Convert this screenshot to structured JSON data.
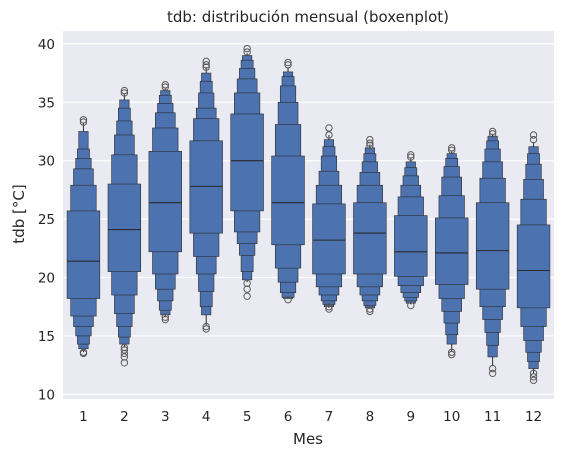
{
  "chart_data": {
    "type": "boxen",
    "title": "tdb: distribución mensual (boxenplot)",
    "xlabel": "Mes",
    "ylabel": "tdb [°C]",
    "categories": [
      "1",
      "2",
      "3",
      "4",
      "5",
      "6",
      "7",
      "8",
      "9",
      "10",
      "11",
      "12"
    ],
    "ylim": [
      9.6,
      41.1
    ],
    "yticks": [
      10,
      15,
      20,
      25,
      30,
      35,
      40
    ],
    "grid": true,
    "colors": {
      "plot_bg": "#eaeaf2",
      "grid": "#ffffff",
      "box": "#4c72b0",
      "edge": "#2b2b2b"
    },
    "series": [
      {
        "month": "1",
        "median": 21.4,
        "levels": [
          [
            18.2,
            25.7
          ],
          [
            16.7,
            27.9
          ],
          [
            15.8,
            29.3
          ],
          [
            15.0,
            30.2
          ],
          [
            14.3,
            31.0
          ],
          [
            13.9,
            32.5
          ]
        ],
        "whisker": [
          13.6,
          33.2
        ],
        "outliers": [
          13.5,
          13.6,
          33.3,
          33.5
        ]
      },
      {
        "month": "2",
        "median": 24.1,
        "levels": [
          [
            20.5,
            28.0
          ],
          [
            18.5,
            30.5
          ],
          [
            16.9,
            32.2
          ],
          [
            15.8,
            33.4
          ],
          [
            14.9,
            34.5
          ],
          [
            14.3,
            35.2
          ]
        ],
        "whisker": [
          14.0,
          35.7
        ],
        "outliers": [
          12.7,
          13.2,
          13.5,
          13.8,
          14.0,
          35.8,
          36.0
        ]
      },
      {
        "month": "3",
        "median": 26.4,
        "levels": [
          [
            22.2,
            30.8
          ],
          [
            20.3,
            32.8
          ],
          [
            19.0,
            34.1
          ],
          [
            18.0,
            34.9
          ],
          [
            17.2,
            35.6
          ],
          [
            16.8,
            36.0
          ]
        ],
        "whisker": [
          16.6,
          36.2
        ],
        "outliers": [
          16.4,
          16.6,
          36.3,
          36.5
        ]
      },
      {
        "month": "4",
        "median": 27.8,
        "levels": [
          [
            23.8,
            31.7
          ],
          [
            21.8,
            33.6
          ],
          [
            20.3,
            34.5
          ],
          [
            18.8,
            35.8
          ],
          [
            17.5,
            36.8
          ],
          [
            16.8,
            37.5
          ]
        ],
        "whisker": [
          15.9,
          38.0
        ],
        "outliers": [
          15.6,
          15.8,
          38.0,
          38.2,
          38.5
        ]
      },
      {
        "month": "5",
        "median": 30.0,
        "levels": [
          [
            25.7,
            34.0
          ],
          [
            23.9,
            35.8
          ],
          [
            22.9,
            37.0
          ],
          [
            21.9,
            37.9
          ],
          [
            20.5,
            38.6
          ],
          [
            19.8,
            39.0
          ]
        ],
        "whisker": [
          19.6,
          39.2
        ],
        "outliers": [
          18.4,
          19.0,
          19.5,
          39.3,
          39.6
        ]
      },
      {
        "month": "6",
        "median": 26.4,
        "levels": [
          [
            22.8,
            30.4
          ],
          [
            20.8,
            33.1
          ],
          [
            19.6,
            35.0
          ],
          [
            18.7,
            36.4
          ],
          [
            18.3,
            37.2
          ],
          [
            18.2,
            37.6
          ]
        ],
        "whisker": [
          18.2,
          38.0
        ],
        "outliers": [
          18.1,
          38.2,
          38.4
        ]
      },
      {
        "month": "7",
        "median": 23.2,
        "levels": [
          [
            20.3,
            26.3
          ],
          [
            19.2,
            27.9
          ],
          [
            18.5,
            29.1
          ],
          [
            18.0,
            30.4
          ],
          [
            17.7,
            31.2
          ],
          [
            17.5,
            31.8
          ]
        ],
        "whisker": [
          17.4,
          32.2
        ],
        "outliers": [
          17.3,
          17.5,
          32.2,
          32.8
        ]
      },
      {
        "month": "8",
        "median": 23.8,
        "levels": [
          [
            20.3,
            26.4
          ],
          [
            19.2,
            27.9
          ],
          [
            18.5,
            29.0
          ],
          [
            18.0,
            29.9
          ],
          [
            17.6,
            30.6
          ],
          [
            17.4,
            31.1
          ]
        ],
        "whisker": [
          17.3,
          31.4
        ],
        "outliers": [
          17.1,
          17.3,
          31.3,
          31.5,
          31.8
        ]
      },
      {
        "month": "9",
        "median": 22.2,
        "levels": [
          [
            20.1,
            25.3
          ],
          [
            19.3,
            26.9
          ],
          [
            18.7,
            27.9
          ],
          [
            18.3,
            28.7
          ],
          [
            18.0,
            29.4
          ],
          [
            17.8,
            29.9
          ]
        ],
        "whisker": [
          17.7,
          30.2
        ],
        "outliers": [
          17.6,
          30.3,
          30.5
        ]
      },
      {
        "month": "10",
        "median": 22.1,
        "levels": [
          [
            19.4,
            25.1
          ],
          [
            18.2,
            27.0
          ],
          [
            17.1,
            28.6
          ],
          [
            16.1,
            29.5
          ],
          [
            15.1,
            30.2
          ],
          [
            14.3,
            30.6
          ]
        ],
        "whisker": [
          13.7,
          30.8
        ],
        "outliers": [
          13.4,
          13.6,
          30.9,
          31.1
        ]
      },
      {
        "month": "11",
        "median": 22.3,
        "levels": [
          [
            19.0,
            26.4
          ],
          [
            17.5,
            28.5
          ],
          [
            16.4,
            29.9
          ],
          [
            15.3,
            31.0
          ],
          [
            14.2,
            31.7
          ],
          [
            13.2,
            32.1
          ]
        ],
        "whisker": [
          12.4,
          32.3
        ],
        "outliers": [
          11.8,
          12.2,
          32.3,
          32.5
        ]
      },
      {
        "month": "12",
        "median": 20.6,
        "levels": [
          [
            17.4,
            24.5
          ],
          [
            15.8,
            26.7
          ],
          [
            14.6,
            28.4
          ],
          [
            13.6,
            29.7
          ],
          [
            12.8,
            30.6
          ],
          [
            12.2,
            31.2
          ]
        ],
        "whisker": [
          11.8,
          31.6
        ],
        "outliers": [
          11.2,
          11.5,
          11.8,
          31.8,
          32.2
        ]
      }
    ]
  }
}
